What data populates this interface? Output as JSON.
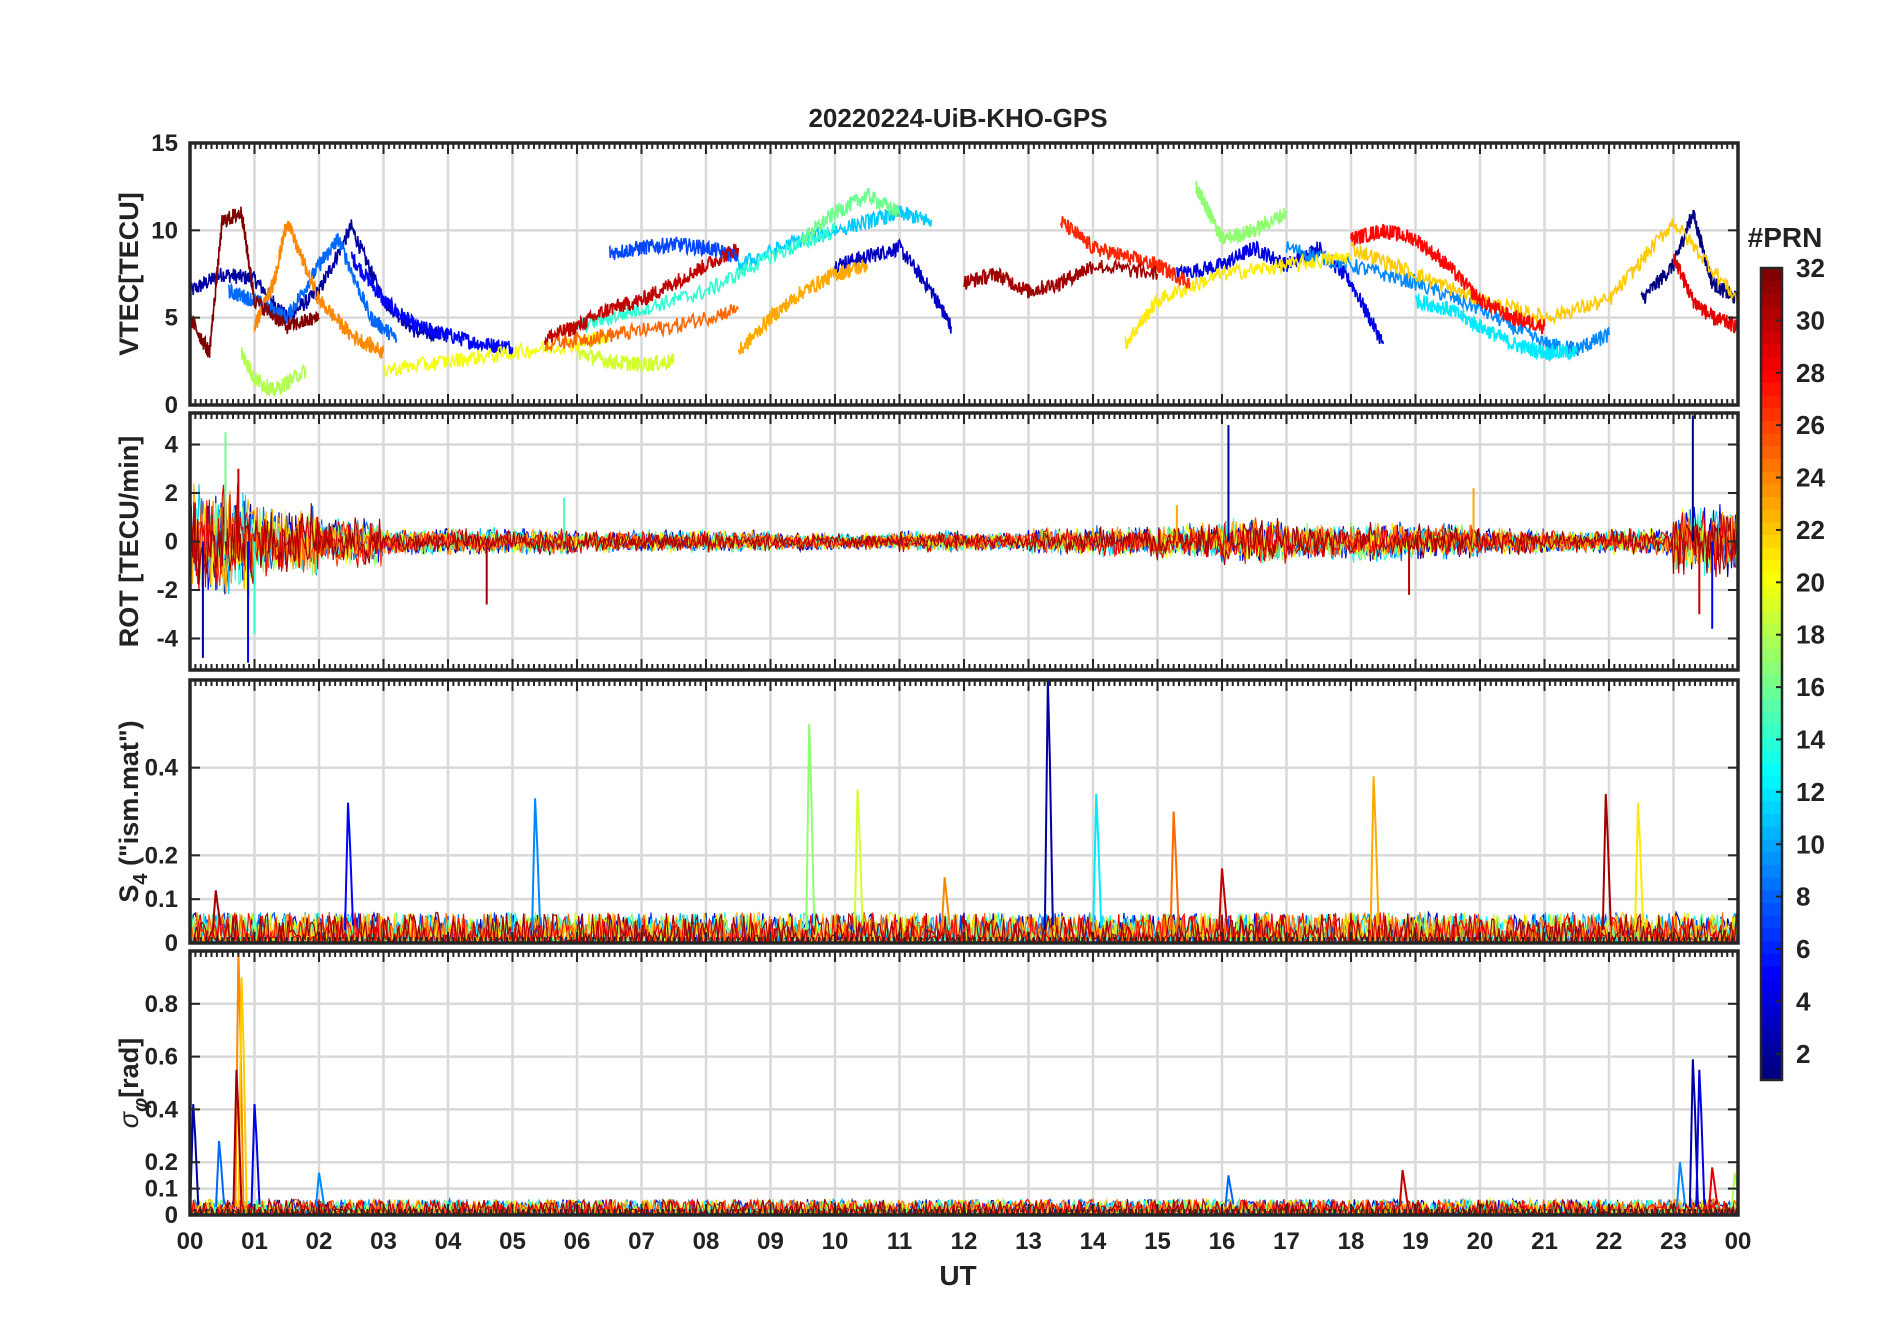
{
  "chart_data": {
    "type": "line",
    "title": "20220224-UiB-KHO-GPS",
    "xlabel": "UT",
    "x_range_hours": [
      0,
      24
    ],
    "x_tick_labels": [
      "00",
      "01",
      "02",
      "03",
      "04",
      "05",
      "06",
      "07",
      "08",
      "09",
      "10",
      "11",
      "12",
      "13",
      "14",
      "15",
      "16",
      "17",
      "18",
      "19",
      "20",
      "21",
      "22",
      "23",
      "00"
    ],
    "grid": true,
    "colorbar": {
      "title": "#PRN",
      "range": [
        1,
        32
      ],
      "tick_labels": [
        "2",
        "4",
        "6",
        "8",
        "10",
        "12",
        "14",
        "16",
        "18",
        "20",
        "22",
        "24",
        "26",
        "28",
        "30",
        "32"
      ],
      "colormap": "jet"
    },
    "panels": [
      {
        "id": "vtec",
        "ylabel": "VTEC[TECU]",
        "ylim": [
          0,
          15
        ],
        "y_ticks": [
          0,
          5,
          10,
          15
        ],
        "y_tick_labels": [
          "0",
          "5",
          "10",
          "15"
        ],
        "series_note": "one line per satellite PRN (values approx.)",
        "series": [
          {
            "prn": 2,
            "x": [
              0.0,
              0.5,
              1.0,
              1.5,
              2.0,
              2.5,
              3.0,
              3.5,
              4.0
            ],
            "y": [
              6.5,
              7.5,
              7.2,
              5.0,
              6.5,
              10.2,
              6.0,
              4.2,
              4.0
            ]
          },
          {
            "prn": 5,
            "x": [
              2.5,
              3.0,
              3.5,
              4.0,
              4.5,
              5.0
            ],
            "y": [
              8.5,
              6.0,
              4.5,
              4.0,
              3.5,
              3.3
            ]
          },
          {
            "prn": 3,
            "x": [
              10.0,
              10.5,
              11.0,
              11.5,
              11.8
            ],
            "y": [
              8.0,
              8.5,
              9.0,
              6.5,
              4.5
            ]
          },
          {
            "prn": 4,
            "x": [
              15.3,
              16.0,
              16.5,
              17.0,
              17.5,
              18.0,
              18.5
            ],
            "y": [
              7.5,
              8.0,
              9.0,
              8.0,
              9.0,
              7.0,
              3.5
            ]
          },
          {
            "prn": 1,
            "x": [
              22.5,
              23.0,
              23.3,
              23.6,
              24.0
            ],
            "y": [
              6.0,
              8.0,
              11.0,
              7.0,
              6.0
            ]
          },
          {
            "prn": 8,
            "x": [
              0.6,
              1.0,
              1.5,
              2.0,
              2.3,
              2.8,
              3.2
            ],
            "y": [
              6.5,
              6.0,
              5.0,
              8.0,
              9.5,
              5.0,
              3.8
            ]
          },
          {
            "prn": 7,
            "x": [
              6.5,
              7.0,
              7.5,
              8.0,
              8.5
            ],
            "y": [
              8.7,
              9.0,
              9.2,
              9.0,
              8.5
            ]
          },
          {
            "prn": 9,
            "x": [
              17.0,
              18.0,
              19.0,
              20.0,
              21.0,
              21.5,
              22.0
            ],
            "y": [
              9.0,
              8.0,
              7.0,
              5.5,
              3.5,
              3.2,
              4.0
            ]
          },
          {
            "prn": 11,
            "x": [
              8.5,
              9.5,
              10.5,
              11.0,
              11.5
            ],
            "y": [
              8.0,
              9.5,
              10.5,
              11.0,
              10.5
            ]
          },
          {
            "prn": 12,
            "x": [
              19.0,
              19.5,
              20.0,
              20.5,
              21.0,
              21.5
            ],
            "y": [
              6.0,
              5.5,
              4.5,
              3.5,
              3.0,
              3.0
            ]
          },
          {
            "prn": 14,
            "x": [
              6.0,
              7.0,
              8.0,
              9.0,
              10.0
            ],
            "y": [
              4.5,
              5.5,
              6.5,
              8.5,
              10.0
            ]
          },
          {
            "prn": 16,
            "x": [
              9.5,
              10.0,
              10.5,
              11.0
            ],
            "y": [
              9.5,
              11.0,
              12.0,
              11.0
            ]
          },
          {
            "prn": 17,
            "x": [
              15.6,
              15.8,
              16.0,
              16.5,
              17.0
            ],
            "y": [
              12.5,
              11.0,
              9.5,
              10.0,
              11.0
            ]
          },
          {
            "prn": 18,
            "x": [
              0.8,
              1.0,
              1.3,
              1.8
            ],
            "y": [
              3.0,
              1.5,
              0.8,
              2.0
            ]
          },
          {
            "prn": 19,
            "x": [
              6.0,
              6.5,
              7.0,
              7.5
            ],
            "y": [
              3.0,
              2.5,
              2.3,
              2.5
            ]
          },
          {
            "prn": 20,
            "x": [
              3.0,
              4.0,
              5.0,
              6.0,
              6.5
            ],
            "y": [
              2.0,
              2.5,
              3.0,
              3.5,
              4.0
            ]
          },
          {
            "prn": 21,
            "x": [
              14.5,
              15.0,
              16.0,
              17.0,
              18.0
            ],
            "y": [
              3.5,
              6.0,
              7.5,
              8.0,
              8.5
            ]
          },
          {
            "prn": 22,
            "x": [
              18.0,
              19.0,
              20.0,
              21.0,
              22.0,
              23.0,
              24.0
            ],
            "y": [
              9.0,
              7.5,
              6.0,
              5.0,
              6.0,
              10.5,
              6.0
            ]
          },
          {
            "prn": 23,
            "x": [
              8.5,
              9.0,
              9.5,
              10.0,
              10.5
            ],
            "y": [
              3.0,
              5.0,
              6.5,
              7.5,
              8.0
            ]
          },
          {
            "prn": 24,
            "x": [
              1.0,
              1.3,
              1.5,
              2.0,
              2.5,
              3.0
            ],
            "y": [
              4.5,
              7.0,
              10.5,
              6.0,
              4.0,
              3.0
            ]
          },
          {
            "prn": 25,
            "x": [
              5.5,
              6.5,
              7.5,
              8.5
            ],
            "y": [
              3.5,
              4.0,
              4.5,
              5.5
            ]
          },
          {
            "prn": 27,
            "x": [
              13.5,
              14.0,
              14.5,
              15.0,
              15.5
            ],
            "y": [
              10.5,
              9.0,
              8.5,
              8.0,
              7.0
            ]
          },
          {
            "prn": 28,
            "x": [
              18.0,
              18.5,
              19.0,
              19.5,
              20.0,
              20.5,
              21.0
            ],
            "y": [
              9.5,
              10.0,
              9.5,
              8.0,
              6.0,
              5.0,
              4.5
            ]
          },
          {
            "prn": 30,
            "x": [
              5.5,
              6.0,
              6.5,
              7.0,
              7.5,
              8.0,
              8.5
            ],
            "y": [
              3.8,
              4.5,
              5.5,
              6.0,
              7.0,
              8.0,
              9.0
            ]
          },
          {
            "prn": 31,
            "x": [
              12.0,
              12.5,
              13.0,
              13.5,
              14.0,
              15.0
            ],
            "y": [
              7.0,
              7.5,
              6.5,
              7.0,
              8.0,
              7.5
            ]
          },
          {
            "prn": 32,
            "x": [
              0.0,
              0.3,
              0.5,
              0.8,
              1.0,
              1.5,
              2.0
            ],
            "y": [
              5.0,
              3.0,
              10.5,
              11.0,
              6.0,
              4.5,
              5.0
            ]
          },
          {
            "prn": 29,
            "x": [
              23.0,
              23.3,
              23.6,
              24.0
            ],
            "y": [
              8.5,
              6.0,
              5.0,
              4.5
            ]
          }
        ]
      },
      {
        "id": "rot",
        "ylabel": "ROT [TECU/min]",
        "ylim": [
          -5.3,
          5.3
        ],
        "y_ticks": [
          -4,
          -2,
          0,
          2,
          4
        ],
        "y_tick_labels": [
          "-4",
          "-2",
          "0",
          "2",
          "4"
        ],
        "envelope_note": "noise around 0 for all PRNs; amplitude per hour (approx.)",
        "amplitude_per_hour": [
          2.5,
          1.6,
          1.1,
          0.6,
          0.6,
          0.6,
          0.5,
          0.5,
          0.5,
          0.4,
          0.4,
          0.5,
          0.4,
          0.6,
          0.7,
          0.8,
          1.0,
          0.8,
          0.9,
          0.8,
          0.6,
          0.5,
          0.6,
          1.6
        ],
        "spikes": [
          {
            "prn": 2,
            "x": 0.2,
            "y": -4.8
          },
          {
            "prn": 16,
            "x": 0.55,
            "y": 4.5
          },
          {
            "prn": 30,
            "x": 0.75,
            "y": 3.0
          },
          {
            "prn": 5,
            "x": 0.9,
            "y": -5.0
          },
          {
            "prn": 14,
            "x": 1.0,
            "y": -3.8
          },
          {
            "prn": 2,
            "x": 16.1,
            "y": 4.8
          },
          {
            "prn": 31,
            "x": 4.6,
            "y": -2.6
          },
          {
            "prn": 23,
            "x": 15.3,
            "y": 1.5
          },
          {
            "prn": 30,
            "x": 18.9,
            "y": -2.2
          },
          {
            "prn": 1,
            "x": 23.3,
            "y": 5.2
          },
          {
            "prn": 5,
            "x": 23.6,
            "y": -3.6
          },
          {
            "prn": 30,
            "x": 23.4,
            "y": -3.0
          },
          {
            "prn": 23,
            "x": 19.9,
            "y": 2.2
          },
          {
            "prn": 15,
            "x": 5.8,
            "y": 1.8
          }
        ]
      },
      {
        "id": "s4",
        "ylabel": "S4 (\"ism.mat\")",
        "ylabel_parts": [
          "S",
          "4",
          " (\"ism.mat\")"
        ],
        "ylim": [
          0,
          0.6
        ],
        "y_ticks": [
          0,
          0.1,
          0.2,
          0.4
        ],
        "y_tick_labels": [
          "0",
          "0.1",
          "0.2",
          "0.4"
        ],
        "baseline_range": [
          0.0,
          0.07
        ],
        "spikes": [
          {
            "prn": 5,
            "x": 2.45,
            "y": 0.32
          },
          {
            "prn": 9,
            "x": 5.35,
            "y": 0.33
          },
          {
            "prn": 17,
            "x": 9.6,
            "y": 0.5
          },
          {
            "prn": 19,
            "x": 10.35,
            "y": 0.35
          },
          {
            "prn": 24,
            "x": 11.7,
            "y": 0.15
          },
          {
            "prn": 2,
            "x": 13.3,
            "y": 0.6
          },
          {
            "prn": 12,
            "x": 14.05,
            "y": 0.34
          },
          {
            "prn": 25,
            "x": 15.25,
            "y": 0.3
          },
          {
            "prn": 30,
            "x": 16.0,
            "y": 0.17
          },
          {
            "prn": 23,
            "x": 18.35,
            "y": 0.38
          },
          {
            "prn": 31,
            "x": 21.95,
            "y": 0.34
          },
          {
            "prn": 21,
            "x": 22.45,
            "y": 0.32
          },
          {
            "prn": 31,
            "x": 0.4,
            "y": 0.12
          }
        ]
      },
      {
        "id": "sigma_phi",
        "ylabel": "σφ [rad]",
        "ylabel_parts": [
          "σ",
          "φ",
          "[rad]"
        ],
        "ylim": [
          0,
          1.0
        ],
        "y_ticks": [
          0,
          0.1,
          0.2,
          0.4,
          0.6,
          0.8
        ],
        "y_tick_labels": [
          "0",
          "0.1",
          "0.2",
          "0.4",
          "0.6",
          "0.8"
        ],
        "baseline_range": [
          0.0,
          0.06
        ],
        "spikes": [
          {
            "prn": 24,
            "x": 0.75,
            "y": 1.0
          },
          {
            "prn": 22,
            "x": 0.8,
            "y": 0.9
          },
          {
            "prn": 31,
            "x": 0.72,
            "y": 0.55
          },
          {
            "prn": 2,
            "x": 0.05,
            "y": 0.42
          },
          {
            "prn": 4,
            "x": 1.0,
            "y": 0.42
          },
          {
            "prn": 8,
            "x": 0.45,
            "y": 0.28
          },
          {
            "prn": 9,
            "x": 2.0,
            "y": 0.16
          },
          {
            "prn": 2,
            "x": 23.3,
            "y": 0.59
          },
          {
            "prn": 4,
            "x": 23.4,
            "y": 0.55
          },
          {
            "prn": 9,
            "x": 23.1,
            "y": 0.2
          },
          {
            "prn": 29,
            "x": 23.6,
            "y": 0.18
          },
          {
            "prn": 18,
            "x": 23.95,
            "y": 0.16
          },
          {
            "prn": 8,
            "x": 16.1,
            "y": 0.15
          },
          {
            "prn": 30,
            "x": 18.8,
            "y": 0.17
          }
        ]
      }
    ]
  }
}
